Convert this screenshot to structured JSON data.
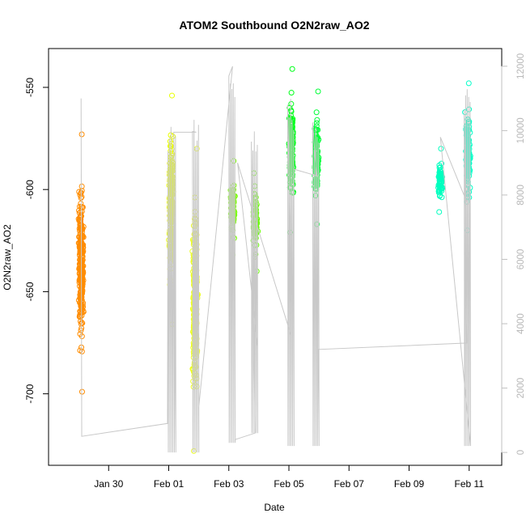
{
  "chart_data": {
    "type": "scatter",
    "title": "ATOM2 Southbound O2N2raw_AO2",
    "xlabel": "Date",
    "ylabel": "O2N2raw_AO2",
    "x_ticks": [
      "Jan 30",
      "Feb 01",
      "Feb 03",
      "Feb 05",
      "Feb 07",
      "Feb 09",
      "Feb 11"
    ],
    "x_tick_values": [
      "2020-01-30",
      "2020-02-01",
      "2020-02-03",
      "2020-02-05",
      "2020-02-07",
      "2020-02-09",
      "2020-02-11"
    ],
    "y_ticks": [
      -550,
      -600,
      -650,
      -700
    ],
    "ylim": [
      -735,
      -531
    ],
    "y2_ticks": [
      0,
      2000,
      4000,
      6000,
      8000,
      10000,
      12000
    ],
    "y2lim": [
      -400,
      12550
    ],
    "grid": false,
    "point_style": "open circles, colored by time (rainbow)",
    "secondary_series_color": "#c8c8c8",
    "series": [
      {
        "x": "2020-01-29 02:00",
        "y_range": [
          -699,
          -573
        ],
        "color": "#ff8c00"
      },
      {
        "x": "2020-02-01 02:00",
        "y_range": [
          -666,
          -554
        ],
        "color": "#e8ff00"
      },
      {
        "x": "2020-02-01 21:00",
        "y_range": [
          -728,
          -580
        ],
        "color": "#ecff20"
      },
      {
        "x": "2020-02-03 03:00",
        "y_range": [
          -632,
          -586
        ],
        "color": "#78ff00"
      },
      {
        "x": "2020-02-03 21:00",
        "y_range": [
          -640,
          -592
        ],
        "color": "#66ff00"
      },
      {
        "x": "2020-02-05 02:00",
        "y_range": [
          -621,
          -541
        ],
        "color": "#00ff1a"
      },
      {
        "x": "2020-02-05 22:00",
        "y_range": [
          -617,
          -552
        ],
        "color": "#00ff38"
      },
      {
        "x": "2020-02-10 01:00",
        "y_range": [
          -611,
          -580
        ],
        "color": "#00ffbf"
      },
      {
        "x": "2020-02-10 23:00",
        "y_range": [
          -620,
          -548
        ],
        "color": "#00ffc9"
      }
    ]
  }
}
